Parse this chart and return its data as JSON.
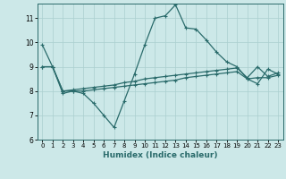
{
  "xlabel": "Humidex (Indice chaleur)",
  "background_color": "#cce8e8",
  "line_color": "#2a6b6b",
  "grid_color": "#aacfcf",
  "xlim": [
    -0.5,
    23.5
  ],
  "ylim": [
    6,
    11.6
  ],
  "yticks": [
    6,
    7,
    8,
    9,
    10,
    11
  ],
  "xticks": [
    0,
    1,
    2,
    3,
    4,
    5,
    6,
    7,
    8,
    9,
    10,
    11,
    12,
    13,
    14,
    15,
    16,
    17,
    18,
    19,
    20,
    21,
    22,
    23
  ],
  "series1_x": [
    0,
    1,
    2,
    3,
    4,
    5,
    6,
    7,
    8,
    9,
    10,
    11,
    12,
    13,
    14,
    15,
    16,
    17,
    18,
    19,
    20,
    21,
    22,
    23
  ],
  "series1_y": [
    9.9,
    9.0,
    7.9,
    8.0,
    7.9,
    7.5,
    7.0,
    6.5,
    7.6,
    8.7,
    9.9,
    11.0,
    11.1,
    11.55,
    10.6,
    10.55,
    10.1,
    9.6,
    9.2,
    9.0,
    8.5,
    8.3,
    8.9,
    8.7
  ],
  "series2_x": [
    0,
    1,
    2,
    3,
    4,
    5,
    6,
    7,
    8,
    9,
    10,
    11,
    12,
    13,
    14,
    15,
    16,
    17,
    18,
    19,
    20,
    21,
    22,
    23
  ],
  "series2_y": [
    9.0,
    9.0,
    8.0,
    8.0,
    8.0,
    8.05,
    8.1,
    8.15,
    8.2,
    8.25,
    8.3,
    8.35,
    8.4,
    8.45,
    8.55,
    8.6,
    8.65,
    8.7,
    8.75,
    8.8,
    8.5,
    8.55,
    8.55,
    8.65
  ],
  "series3_x": [
    0,
    1,
    2,
    3,
    4,
    5,
    6,
    7,
    8,
    9,
    10,
    11,
    12,
    13,
    14,
    15,
    16,
    17,
    18,
    19,
    20,
    21,
    22,
    23
  ],
  "series3_y": [
    9.0,
    9.0,
    8.0,
    8.05,
    8.1,
    8.15,
    8.2,
    8.25,
    8.35,
    8.4,
    8.5,
    8.55,
    8.6,
    8.65,
    8.7,
    8.75,
    8.8,
    8.85,
    8.9,
    8.95,
    8.55,
    9.0,
    8.6,
    8.75
  ]
}
